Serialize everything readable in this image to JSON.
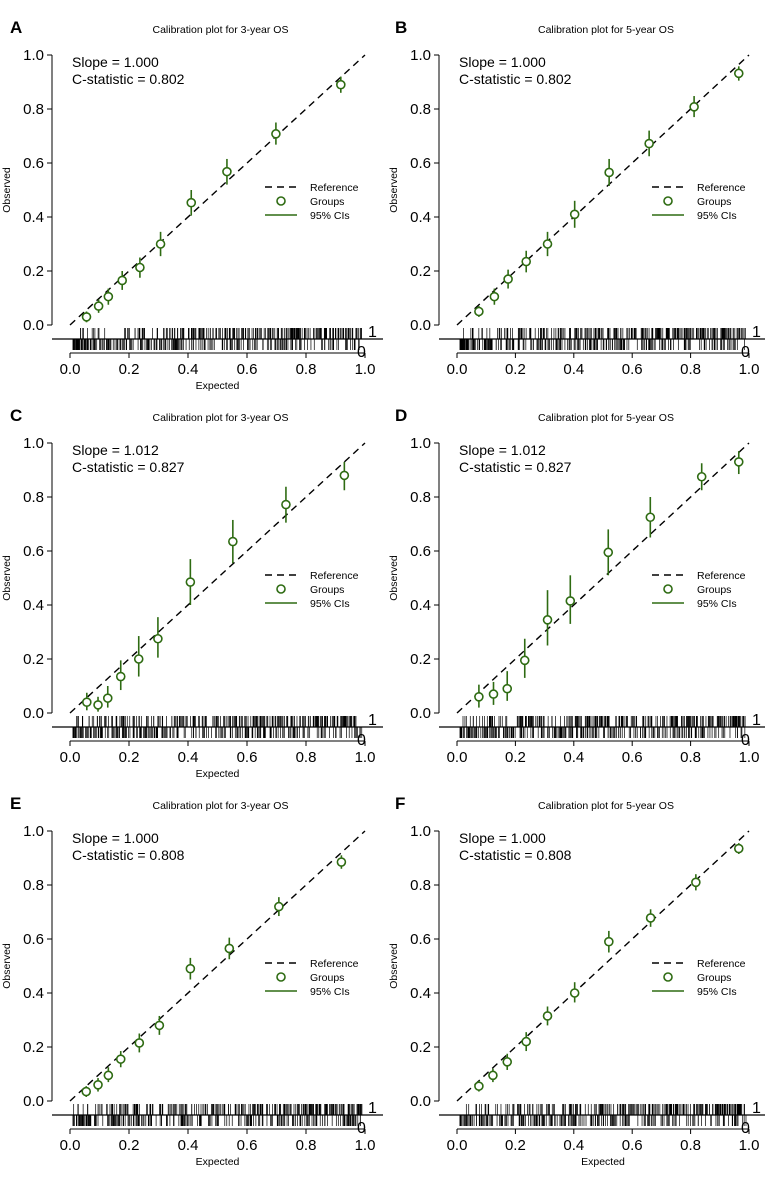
{
  "colors": {
    "group": "#2e6b12",
    "reference": "#000000",
    "rug": "#000000"
  },
  "legend_entries": [
    "Reference",
    "Groups",
    "95% CIs"
  ],
  "chart_data": [
    {
      "panel": "A",
      "type": "scatter",
      "title": "Calibration plot for 3-year OS",
      "xlabel": "Expected",
      "ylabel": "Observed",
      "xlim": [
        0,
        1
      ],
      "ylim": [
        0,
        1
      ],
      "xticks": [
        "0.0",
        "0.2",
        "0.4",
        "0.6",
        "0.8",
        "1.0"
      ],
      "yticks": [
        "0.0",
        "0.2",
        "0.4",
        "0.6",
        "0.8",
        "1.0"
      ],
      "slope": "Slope = 1.000",
      "c_statistic": "C-statistic = 0.802",
      "rug_labels": [
        "1",
        "0"
      ],
      "series": [
        {
          "name": "Groups",
          "x": [
            0.056,
            0.097,
            0.13,
            0.177,
            0.237,
            0.307,
            0.411,
            0.532,
            0.698,
            0.918
          ],
          "y": [
            0.03,
            0.07,
            0.105,
            0.165,
            0.213,
            0.3,
            0.453,
            0.568,
            0.708,
            0.89
          ],
          "lower": [
            0.01,
            0.045,
            0.075,
            0.13,
            0.175,
            0.255,
            0.405,
            0.52,
            0.668,
            0.86
          ],
          "upper": [
            0.05,
            0.095,
            0.135,
            0.2,
            0.25,
            0.345,
            0.5,
            0.615,
            0.75,
            0.92
          ]
        }
      ]
    },
    {
      "panel": "B",
      "type": "scatter",
      "title": "Calibration plot for 5-year OS",
      "xlabel": "",
      "ylabel": "Observed",
      "xlim": [
        0,
        1
      ],
      "ylim": [
        0,
        1
      ],
      "xticks": [
        "0.0",
        "0.2",
        "0.4",
        "0.6",
        "0.8",
        "1.0"
      ],
      "yticks": [
        "0.0",
        "0.2",
        "0.4",
        "0.6",
        "0.8",
        "1.0"
      ],
      "slope": "Slope = 1.000",
      "c_statistic": "C-statistic = 0.802",
      "rug_labels": [
        "1",
        "0"
      ],
      "series": [
        {
          "name": "Groups",
          "x": [
            0.075,
            0.128,
            0.175,
            0.237,
            0.31,
            0.403,
            0.521,
            0.658,
            0.812,
            0.965
          ],
          "y": [
            0.05,
            0.105,
            0.17,
            0.235,
            0.3,
            0.41,
            0.565,
            0.672,
            0.808,
            0.932
          ],
          "lower": [
            0.03,
            0.075,
            0.135,
            0.195,
            0.255,
            0.36,
            0.515,
            0.625,
            0.77,
            0.905
          ],
          "upper": [
            0.07,
            0.135,
            0.205,
            0.275,
            0.345,
            0.46,
            0.615,
            0.72,
            0.848,
            0.958
          ]
        }
      ]
    },
    {
      "panel": "C",
      "type": "scatter",
      "title": "Calibration plot for 3-year OS",
      "xlabel": "Expected",
      "ylabel": "Observed",
      "xlim": [
        0,
        1
      ],
      "ylim": [
        0,
        1
      ],
      "xticks": [
        "0.0",
        "0.2",
        "0.4",
        "0.6",
        "0.8",
        "1.0"
      ],
      "yticks": [
        "0.0",
        "0.2",
        "0.4",
        "0.6",
        "0.8",
        "1.0"
      ],
      "slope": "Slope = 1.012",
      "c_statistic": "C-statistic = 0.827",
      "rug_labels": [
        "1",
        "0"
      ],
      "series": [
        {
          "name": "Groups",
          "x": [
            0.057,
            0.095,
            0.128,
            0.172,
            0.233,
            0.298,
            0.408,
            0.552,
            0.732,
            0.93
          ],
          "y": [
            0.04,
            0.03,
            0.055,
            0.135,
            0.2,
            0.275,
            0.485,
            0.635,
            0.772,
            0.88
          ],
          "lower": [
            0.01,
            0.005,
            0.02,
            0.085,
            0.135,
            0.205,
            0.4,
            0.555,
            0.705,
            0.825
          ],
          "upper": [
            0.075,
            0.06,
            0.1,
            0.195,
            0.285,
            0.355,
            0.57,
            0.715,
            0.838,
            0.93
          ]
        }
      ]
    },
    {
      "panel": "D",
      "type": "scatter",
      "title": "Calibration plot for 5-year OS",
      "xlabel": "",
      "ylabel": "Observed",
      "xlim": [
        0,
        1
      ],
      "ylim": [
        0,
        1
      ],
      "xticks": [
        "0.0",
        "0.2",
        "0.4",
        "0.6",
        "0.8",
        "1.0"
      ],
      "yticks": [
        "0.0",
        "0.2",
        "0.4",
        "0.6",
        "0.8",
        "1.0"
      ],
      "slope": "Slope = 1.012",
      "c_statistic": "C-statistic = 0.827",
      "rug_labels": [
        "1",
        "0"
      ],
      "series": [
        {
          "name": "Groups",
          "x": [
            0.075,
            0.125,
            0.172,
            0.232,
            0.31,
            0.388,
            0.518,
            0.662,
            0.838,
            0.965
          ],
          "y": [
            0.06,
            0.07,
            0.09,
            0.195,
            0.345,
            0.415,
            0.595,
            0.725,
            0.875,
            0.93
          ],
          "lower": [
            0.02,
            0.03,
            0.045,
            0.13,
            0.25,
            0.33,
            0.51,
            0.65,
            0.825,
            0.885
          ],
          "upper": [
            0.105,
            0.115,
            0.155,
            0.275,
            0.455,
            0.51,
            0.68,
            0.8,
            0.925,
            0.97
          ]
        }
      ]
    },
    {
      "panel": "E",
      "type": "scatter",
      "title": "Calibration plot for 3-year OS",
      "xlabel": "Expected",
      "ylabel": "Observed",
      "xlim": [
        0,
        1
      ],
      "ylim": [
        0,
        1
      ],
      "xticks": [
        "0.0",
        "0.2",
        "0.4",
        "0.6",
        "0.8",
        "1.0"
      ],
      "yticks": [
        "0.0",
        "0.2",
        "0.4",
        "0.6",
        "0.8",
        "1.0"
      ],
      "slope": "Slope = 1.000",
      "c_statistic": "C-statistic = 0.808",
      "rug_labels": [
        "1",
        "0"
      ],
      "series": [
        {
          "name": "Groups",
          "x": [
            0.055,
            0.095,
            0.13,
            0.172,
            0.235,
            0.303,
            0.408,
            0.54,
            0.708,
            0.92
          ],
          "y": [
            0.035,
            0.06,
            0.095,
            0.155,
            0.215,
            0.28,
            0.49,
            0.565,
            0.72,
            0.885
          ],
          "lower": [
            0.015,
            0.035,
            0.07,
            0.125,
            0.18,
            0.245,
            0.45,
            0.525,
            0.685,
            0.86
          ],
          "upper": [
            0.055,
            0.085,
            0.125,
            0.185,
            0.25,
            0.315,
            0.53,
            0.605,
            0.755,
            0.91
          ]
        }
      ]
    },
    {
      "panel": "F",
      "type": "scatter",
      "title": "Calibration plot for 5-year OS",
      "xlabel": "Expected",
      "ylabel": "Observed",
      "xlim": [
        0,
        1
      ],
      "ylim": [
        0,
        1
      ],
      "xticks": [
        "0.0",
        "0.2",
        "0.4",
        "0.6",
        "0.8",
        "1.0"
      ],
      "yticks": [
        "0.0",
        "0.2",
        "0.4",
        "0.6",
        "0.8",
        "1.0"
      ],
      "slope": "Slope = 1.000",
      "c_statistic": "C-statistic = 0.808",
      "rug_labels": [
        "1",
        "0"
      ],
      "series": [
        {
          "name": "Groups",
          "x": [
            0.075,
            0.123,
            0.172,
            0.237,
            0.31,
            0.403,
            0.52,
            0.663,
            0.818,
            0.965
          ],
          "y": [
            0.055,
            0.095,
            0.145,
            0.22,
            0.315,
            0.4,
            0.59,
            0.678,
            0.81,
            0.935
          ],
          "lower": [
            0.035,
            0.07,
            0.115,
            0.185,
            0.28,
            0.365,
            0.55,
            0.645,
            0.78,
            0.915
          ],
          "upper": [
            0.075,
            0.12,
            0.175,
            0.255,
            0.35,
            0.44,
            0.63,
            0.71,
            0.84,
            0.955
          ]
        }
      ]
    }
  ]
}
